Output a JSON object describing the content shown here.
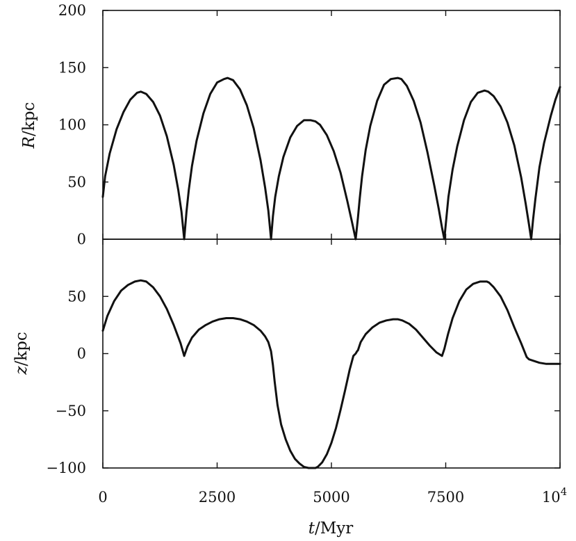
{
  "chart_data": [
    {
      "type": "line",
      "ylabel_var": "R",
      "ylabel_unit": "/kpc",
      "xlim": [
        0,
        10000
      ],
      "ylim": [
        0,
        200
      ],
      "yticks": [
        0,
        50,
        100,
        150,
        200
      ],
      "ytick_labels": [
        "0",
        "50",
        "100",
        "150",
        "200"
      ],
      "grid": false,
      "series": [
        {
          "x": [
            0,
            50,
            150,
            300,
            450,
            600,
            750,
            830,
            950,
            1100,
            1250,
            1400,
            1550,
            1650,
            1720,
            1780,
            1830,
            1880,
            1950,
            2050,
            2200,
            2350,
            2500,
            2650,
            2730,
            2850,
            3000,
            3150,
            3300,
            3450,
            3550,
            3620,
            3680,
            3720,
            3770,
            3850,
            3950,
            4100,
            4250,
            4400,
            4550,
            4650,
            4750,
            4900,
            5050,
            5200,
            5350,
            5450,
            5530,
            5580,
            5620,
            5670,
            5750,
            5850,
            6000,
            6150,
            6300,
            6450,
            6530,
            6650,
            6800,
            6950,
            7100,
            7250,
            7350,
            7420,
            7470,
            7510,
            7560,
            7650,
            7750,
            7900,
            8050,
            8200,
            8350,
            8430,
            8550,
            8700,
            8850,
            9000,
            9150,
            9250,
            9320,
            9370,
            9410,
            9460,
            9550,
            9650,
            9800,
            9900,
            10000
          ],
          "y": [
            37,
            55,
            75,
            96,
            111,
            122,
            128,
            129,
            127,
            120,
            108,
            90,
            65,
            43,
            24,
            0,
            24,
            43,
            64,
            86,
            110,
            127,
            137,
            140,
            141,
            139,
            131,
            117,
            97,
            69,
            45,
            25,
            0,
            20,
            37,
            55,
            72,
            89,
            99,
            104,
            104,
            103,
            100,
            91,
            77,
            58,
            33,
            15,
            0,
            19,
            36,
            55,
            78,
            99,
            121,
            135,
            140,
            141,
            140,
            134,
            121,
            102,
            76,
            47,
            26,
            10,
            0,
            17,
            37,
            61,
            81,
            104,
            120,
            128,
            130,
            129,
            125,
            116,
            102,
            82,
            54,
            31,
            13,
            0,
            17,
            35,
            63,
            84,
            108,
            122,
            133
          ]
        }
      ]
    },
    {
      "type": "line",
      "ylabel_var": "z",
      "ylabel_unit": "/kpc",
      "xlabel_var": "t",
      "xlabel_unit": "/Myr",
      "xlim": [
        0,
        10000
      ],
      "ylim": [
        -100,
        100
      ],
      "yticks": [
        -100,
        -50,
        0,
        50
      ],
      "ytick_labels": [
        "−100",
        "−50",
        "0",
        "50"
      ],
      "xticks": [
        0,
        2500,
        5000,
        7500
      ],
      "xtick_labels": [
        "0",
        "2500",
        "5000",
        "7500"
      ],
      "xtick_last_base": "10",
      "xtick_last_exp": "4",
      "grid": false,
      "series": [
        {
          "x": [
            0,
            100,
            250,
            400,
            550,
            700,
            830,
            950,
            1100,
            1250,
            1400,
            1550,
            1700,
            1780,
            1850,
            1950,
            2100,
            2250,
            2400,
            2550,
            2700,
            2850,
            3000,
            3150,
            3300,
            3450,
            3550,
            3620,
            3680,
            3720,
            3760,
            3820,
            3900,
            4000,
            4100,
            4200,
            4300,
            4400,
            4500,
            4600,
            4650,
            4700,
            4800,
            4900,
            5000,
            5100,
            5200,
            5300,
            5400,
            5480,
            5530,
            5560,
            5580,
            5640,
            5750,
            5900,
            6050,
            6200,
            6350,
            6450,
            6550,
            6700,
            6850,
            7000,
            7150,
            7300,
            7420,
            7470,
            7550,
            7650,
            7800,
            7950,
            8100,
            8250,
            8400,
            8450,
            8550,
            8700,
            8850,
            9000,
            9150,
            9270,
            9320,
            9400,
            9550,
            9700,
            9850,
            10000
          ],
          "y": [
            20,
            33,
            46,
            55,
            60,
            63,
            64,
            63,
            58,
            50,
            39,
            25,
            9,
            -2,
            6,
            14,
            21,
            25,
            28,
            30,
            31,
            31,
            30,
            28,
            25,
            20,
            15,
            10,
            2,
            -10,
            -25,
            -45,
            -62,
            -75,
            -85,
            -92,
            -96,
            -99,
            -100,
            -100,
            -100,
            -99,
            -95,
            -88,
            -78,
            -65,
            -49,
            -32,
            -14,
            -2,
            0,
            2,
            3,
            10,
            17,
            23,
            27,
            29,
            30,
            30,
            29,
            26,
            21,
            14,
            7,
            1,
            -2,
            4,
            17,
            31,
            46,
            56,
            61,
            63,
            63,
            62,
            58,
            50,
            38,
            23,
            9,
            -3,
            -5,
            -6,
            -8,
            -9,
            -9,
            -9
          ]
        }
      ]
    }
  ]
}
